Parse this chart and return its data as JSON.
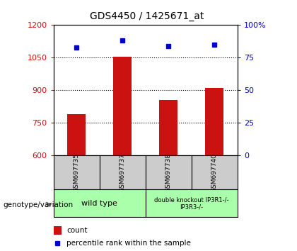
{
  "title": "GDS4450 / 1425671_at",
  "samples": [
    "GSM697735",
    "GSM697737",
    "GSM697738",
    "GSM697740"
  ],
  "counts": [
    790,
    1055,
    855,
    910
  ],
  "percentiles": [
    83,
    88,
    84,
    85
  ],
  "ylim_left": [
    600,
    1200
  ],
  "ylim_right": [
    0,
    100
  ],
  "yticks_left": [
    600,
    750,
    900,
    1050,
    1200
  ],
  "yticks_right": [
    0,
    25,
    50,
    75,
    100
  ],
  "bar_color": "#cc1111",
  "dot_color": "#0000cc",
  "label_color_left": "#cc1111",
  "label_color_right": "#0000cc",
  "genotype_groups": [
    {
      "label": "wild type",
      "samples_idx": [
        0,
        1
      ],
      "color": "#aaffaa"
    },
    {
      "label": "double knockout IP3R1-/-\nIP3R3-/-",
      "samples_idx": [
        2,
        3
      ],
      "color": "#aaffaa"
    }
  ],
  "genotype_label": "genotype/variation",
  "legend_count": "count",
  "legend_percentile": "percentile rank within the sample",
  "bar_width": 0.4,
  "plot_bg": "#ffffff",
  "sample_box_color": "#cccccc"
}
